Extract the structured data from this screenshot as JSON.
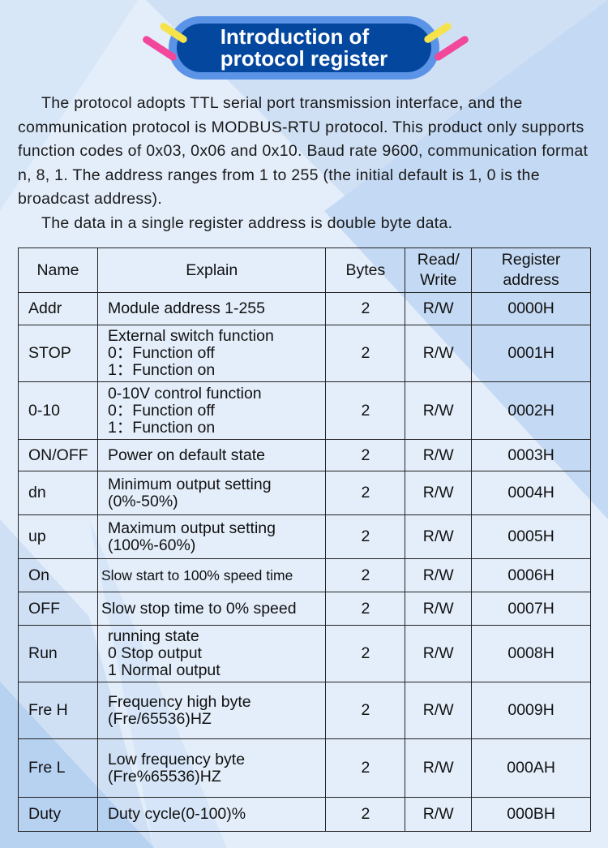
{
  "banner": {
    "title_line1": "Introduction of",
    "title_line2": "protocol register"
  },
  "intro": {
    "paragraph1": "The protocol adopts TTL serial port transmission interface, and the communication protocol is MODBUS-RTU protocol. This product only supports function codes of 0x03, 0x06 and 0x10. Baud rate 9600, communication format n, 8, 1. The address ranges from 1 to 255 (the initial default is 1, 0 is the broadcast address).",
    "paragraph2": "The data in a single register address is double byte data."
  },
  "colors": {
    "banner_dark": "#04479e",
    "banner_light": "#5b93e6",
    "accent_pink": "#f2479b",
    "accent_yellow": "#f6e24a",
    "background": "#e4eefa"
  },
  "table": {
    "headers": {
      "name": "Name",
      "explain": "Explain",
      "bytes": "Bytes",
      "rw_line1": "Read/",
      "rw_line2": "Write",
      "addr_line1": "Register",
      "addr_line2": "address"
    },
    "rows": [
      {
        "name": "Addr",
        "explain": [
          "Module address  1-255"
        ],
        "bytes": "2",
        "rw": "R/W",
        "address": "0000H"
      },
      {
        "name": "STOP",
        "explain": [
          "External switch function",
          "0：Function off",
          "1：Function on"
        ],
        "bytes": "2",
        "rw": "R/W",
        "address": "0001H"
      },
      {
        "name": "0-10",
        "explain": [
          "0-10V control function",
          "0：Function off",
          "1：Function on"
        ],
        "bytes": "2",
        "rw": "R/W",
        "address": "0002H"
      },
      {
        "name": "ON/OFF",
        "explain": [
          "Power on default state"
        ],
        "bytes": "2",
        "rw": "R/W",
        "address": "0003H"
      },
      {
        "name": "dn",
        "explain": [
          "Minimum output setting",
          "(0%-50%)"
        ],
        "bytes": "2",
        "rw": "R/W",
        "address": "0004H"
      },
      {
        "name": "up",
        "explain": [
          "Maximum output setting",
          "(100%-60%)"
        ],
        "bytes": "2",
        "rw": "R/W",
        "address": "0005H"
      },
      {
        "name": "On",
        "explain": [
          "Slow start to 100% speed time"
        ],
        "bytes": "2",
        "rw": "R/W",
        "address": "0006H"
      },
      {
        "name": "OFF",
        "explain": [
          "Slow stop time to 0% speed"
        ],
        "bytes": "2",
        "rw": "R/W",
        "address": "0007H"
      },
      {
        "name": "Run",
        "explain": [
          "running state",
          "0 Stop output",
          "1 Normal output"
        ],
        "bytes": "2",
        "rw": "R/W",
        "address": "0008H"
      },
      {
        "name": "Fre H",
        "explain": [
          "Frequency high byte",
          "(Fre/65536)HZ"
        ],
        "bytes": "2",
        "rw": "R/W",
        "address": "0009H"
      },
      {
        "name": "Fre L",
        "explain": [
          "Low frequency byte",
          "(Fre%65536)HZ"
        ],
        "bytes": "2",
        "rw": "R/W",
        "address": "000AH"
      },
      {
        "name": "Duty",
        "explain": [
          "Duty cycle(0-100)%"
        ],
        "bytes": "2",
        "rw": "R/W",
        "address": "000BH"
      }
    ]
  }
}
